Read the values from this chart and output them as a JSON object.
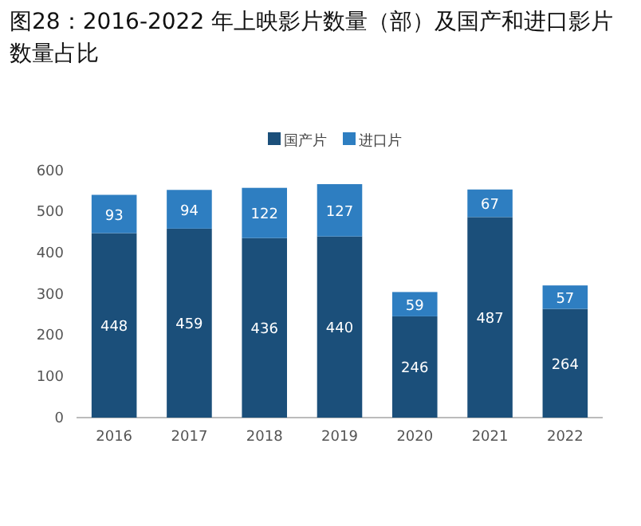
{
  "chart_data": {
    "type": "bar",
    "title": "图28：2016-2022 年上映影片数量（部）及国产和进口影片数量占比",
    "categories": [
      "2016",
      "2017",
      "2018",
      "2019",
      "2020",
      "2021",
      "2022"
    ],
    "series": [
      {
        "name": "国产片",
        "color": "#1b4f7a",
        "values": [
          448,
          459,
          436,
          440,
          246,
          487,
          264
        ]
      },
      {
        "name": "进口片",
        "color": "#2e7ec1",
        "values": [
          93,
          94,
          122,
          127,
          59,
          67,
          57
        ]
      }
    ],
    "stacked": true,
    "ylim": [
      0,
      600
    ],
    "yticks": [
      0,
      100,
      200,
      300,
      400,
      500,
      600
    ],
    "data_labels": true,
    "legend": "top",
    "grid": false
  }
}
